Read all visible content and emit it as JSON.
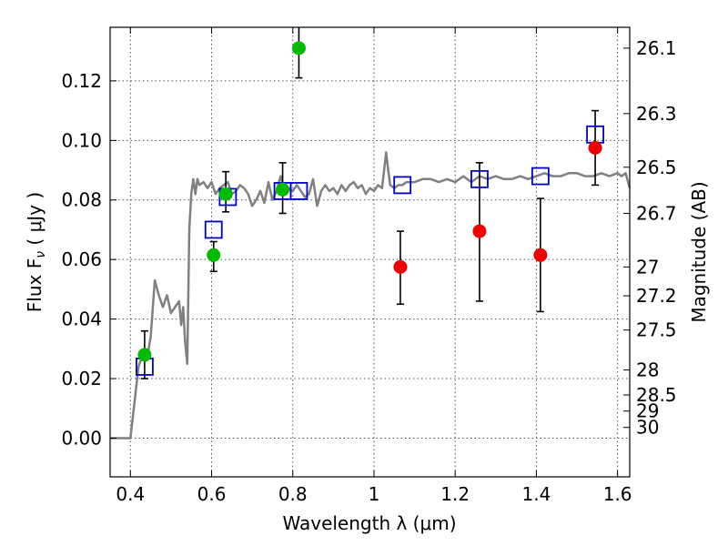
{
  "chart_data": {
    "type": "scatter",
    "xlabel": "Wavelength  λ (μm)",
    "ylabel": "Flux  F",
    "ylabel_sub": "ν",
    "ylabel_unit": " ( μJy )",
    "y2label": "Magnitude (AB)",
    "xlim": [
      0.35,
      1.63
    ],
    "ylim": [
      -0.013,
      0.138
    ],
    "grid": true,
    "x_ticks": [
      0.4,
      0.6,
      0.8,
      1.0,
      1.2,
      1.4,
      1.6
    ],
    "x_tick_labels": [
      "0.4",
      "0.6",
      "0.8",
      "1",
      "1.2",
      "1.4",
      "1.6"
    ],
    "y_ticks": [
      0.0,
      0.02,
      0.04,
      0.06,
      0.08,
      0.1,
      0.12
    ],
    "y_tick_labels": [
      "0.00",
      "0.02",
      "0.04",
      "0.06",
      "0.08",
      "0.10",
      "0.12"
    ],
    "right_ticks": [
      {
        "label": "26.1",
        "flux": 0.131
      },
      {
        "label": "26.3",
        "flux": 0.109
      },
      {
        "label": "26.5",
        "flux": 0.091
      },
      {
        "label": "26.7",
        "flux": 0.0755
      },
      {
        "label": "27",
        "flux": 0.0575
      },
      {
        "label": "27.2",
        "flux": 0.0478
      },
      {
        "label": "27.5",
        "flux": 0.0363
      },
      {
        "label": "28",
        "flux": 0.0229
      },
      {
        "label": "28.5",
        "flux": 0.0145
      },
      {
        "label": "29",
        "flux": 0.0091
      },
      {
        "label": "30",
        "flux": 0.0036
      }
    ],
    "colors": {
      "model": "#808080",
      "green": "#00bb00",
      "red": "#ee0000",
      "square": "#0000cc",
      "error": "#000000",
      "grid": "#555555"
    },
    "series": [
      {
        "kind": "model_spectrum",
        "x": [
          0.35,
          0.4,
          0.41,
          0.42,
          0.43,
          0.44,
          0.45,
          0.46,
          0.47,
          0.48,
          0.49,
          0.5,
          0.51,
          0.52,
          0.525,
          0.53,
          0.535,
          0.54,
          0.545,
          0.55,
          0.555,
          0.56,
          0.565,
          0.57,
          0.58,
          0.59,
          0.6,
          0.61,
          0.62,
          0.63,
          0.64,
          0.65,
          0.66,
          0.67,
          0.68,
          0.69,
          0.7,
          0.71,
          0.72,
          0.73,
          0.74,
          0.75,
          0.76,
          0.77,
          0.78,
          0.79,
          0.8,
          0.81,
          0.82,
          0.83,
          0.84,
          0.85,
          0.86,
          0.87,
          0.88,
          0.89,
          0.9,
          0.91,
          0.92,
          0.93,
          0.94,
          0.95,
          0.96,
          0.97,
          0.98,
          0.99,
          1.0,
          1.01,
          1.02,
          1.03,
          1.035,
          1.04,
          1.05,
          1.06,
          1.07,
          1.08,
          1.09,
          1.1,
          1.12,
          1.14,
          1.16,
          1.18,
          1.2,
          1.22,
          1.24,
          1.26,
          1.28,
          1.3,
          1.32,
          1.34,
          1.36,
          1.38,
          1.4,
          1.42,
          1.44,
          1.46,
          1.48,
          1.5,
          1.52,
          1.54,
          1.56,
          1.58,
          1.6,
          1.61,
          1.62,
          1.63
        ],
        "y": [
          0.0,
          0.0,
          0.012,
          0.024,
          0.028,
          0.026,
          0.034,
          0.053,
          0.048,
          0.044,
          0.048,
          0.042,
          0.044,
          0.046,
          0.038,
          0.044,
          0.032,
          0.025,
          0.07,
          0.082,
          0.087,
          0.082,
          0.087,
          0.085,
          0.086,
          0.084,
          0.086,
          0.082,
          0.084,
          0.085,
          0.086,
          0.082,
          0.083,
          0.085,
          0.084,
          0.082,
          0.078,
          0.08,
          0.083,
          0.079,
          0.086,
          0.08,
          0.083,
          0.088,
          0.083,
          0.084,
          0.083,
          0.085,
          0.083,
          0.081,
          0.082,
          0.087,
          0.078,
          0.083,
          0.085,
          0.083,
          0.084,
          0.082,
          0.085,
          0.083,
          0.085,
          0.086,
          0.084,
          0.085,
          0.082,
          0.084,
          0.083,
          0.085,
          0.084,
          0.096,
          0.09,
          0.085,
          0.084,
          0.085,
          0.085,
          0.086,
          0.086,
          0.086,
          0.087,
          0.087,
          0.086,
          0.087,
          0.086,
          0.088,
          0.086,
          0.088,
          0.087,
          0.088,
          0.087,
          0.087,
          0.088,
          0.087,
          0.088,
          0.089,
          0.088,
          0.088,
          0.089,
          0.089,
          0.088,
          0.088,
          0.089,
          0.088,
          0.089,
          0.088,
          0.089,
          0.084
        ]
      },
      {
        "kind": "model_points",
        "x": [
          0.435,
          0.605,
          0.64,
          0.775,
          0.815,
          1.07,
          1.26,
          1.41,
          1.545
        ],
        "y": [
          0.024,
          0.07,
          0.081,
          0.083,
          0.083,
          0.085,
          0.087,
          0.088,
          0.102
        ]
      },
      {
        "kind": "observed_green",
        "x": [
          0.435,
          0.605,
          0.635,
          0.775,
          0.815
        ],
        "y": [
          0.028,
          0.0615,
          0.082,
          0.0835,
          0.131
        ],
        "err_low": [
          0.02,
          0.056,
          0.076,
          0.0755,
          0.121
        ],
        "err_high": [
          0.036,
          0.066,
          0.0895,
          0.0925,
          0.138
        ]
      },
      {
        "kind": "observed_red",
        "x": [
          1.065,
          1.26,
          1.41,
          1.545
        ],
        "y": [
          0.0575,
          0.0695,
          0.0615,
          0.0975
        ],
        "err_low": [
          0.045,
          0.046,
          0.0425,
          0.085
        ],
        "err_high": [
          0.0695,
          0.0925,
          0.0805,
          0.11
        ]
      }
    ]
  }
}
